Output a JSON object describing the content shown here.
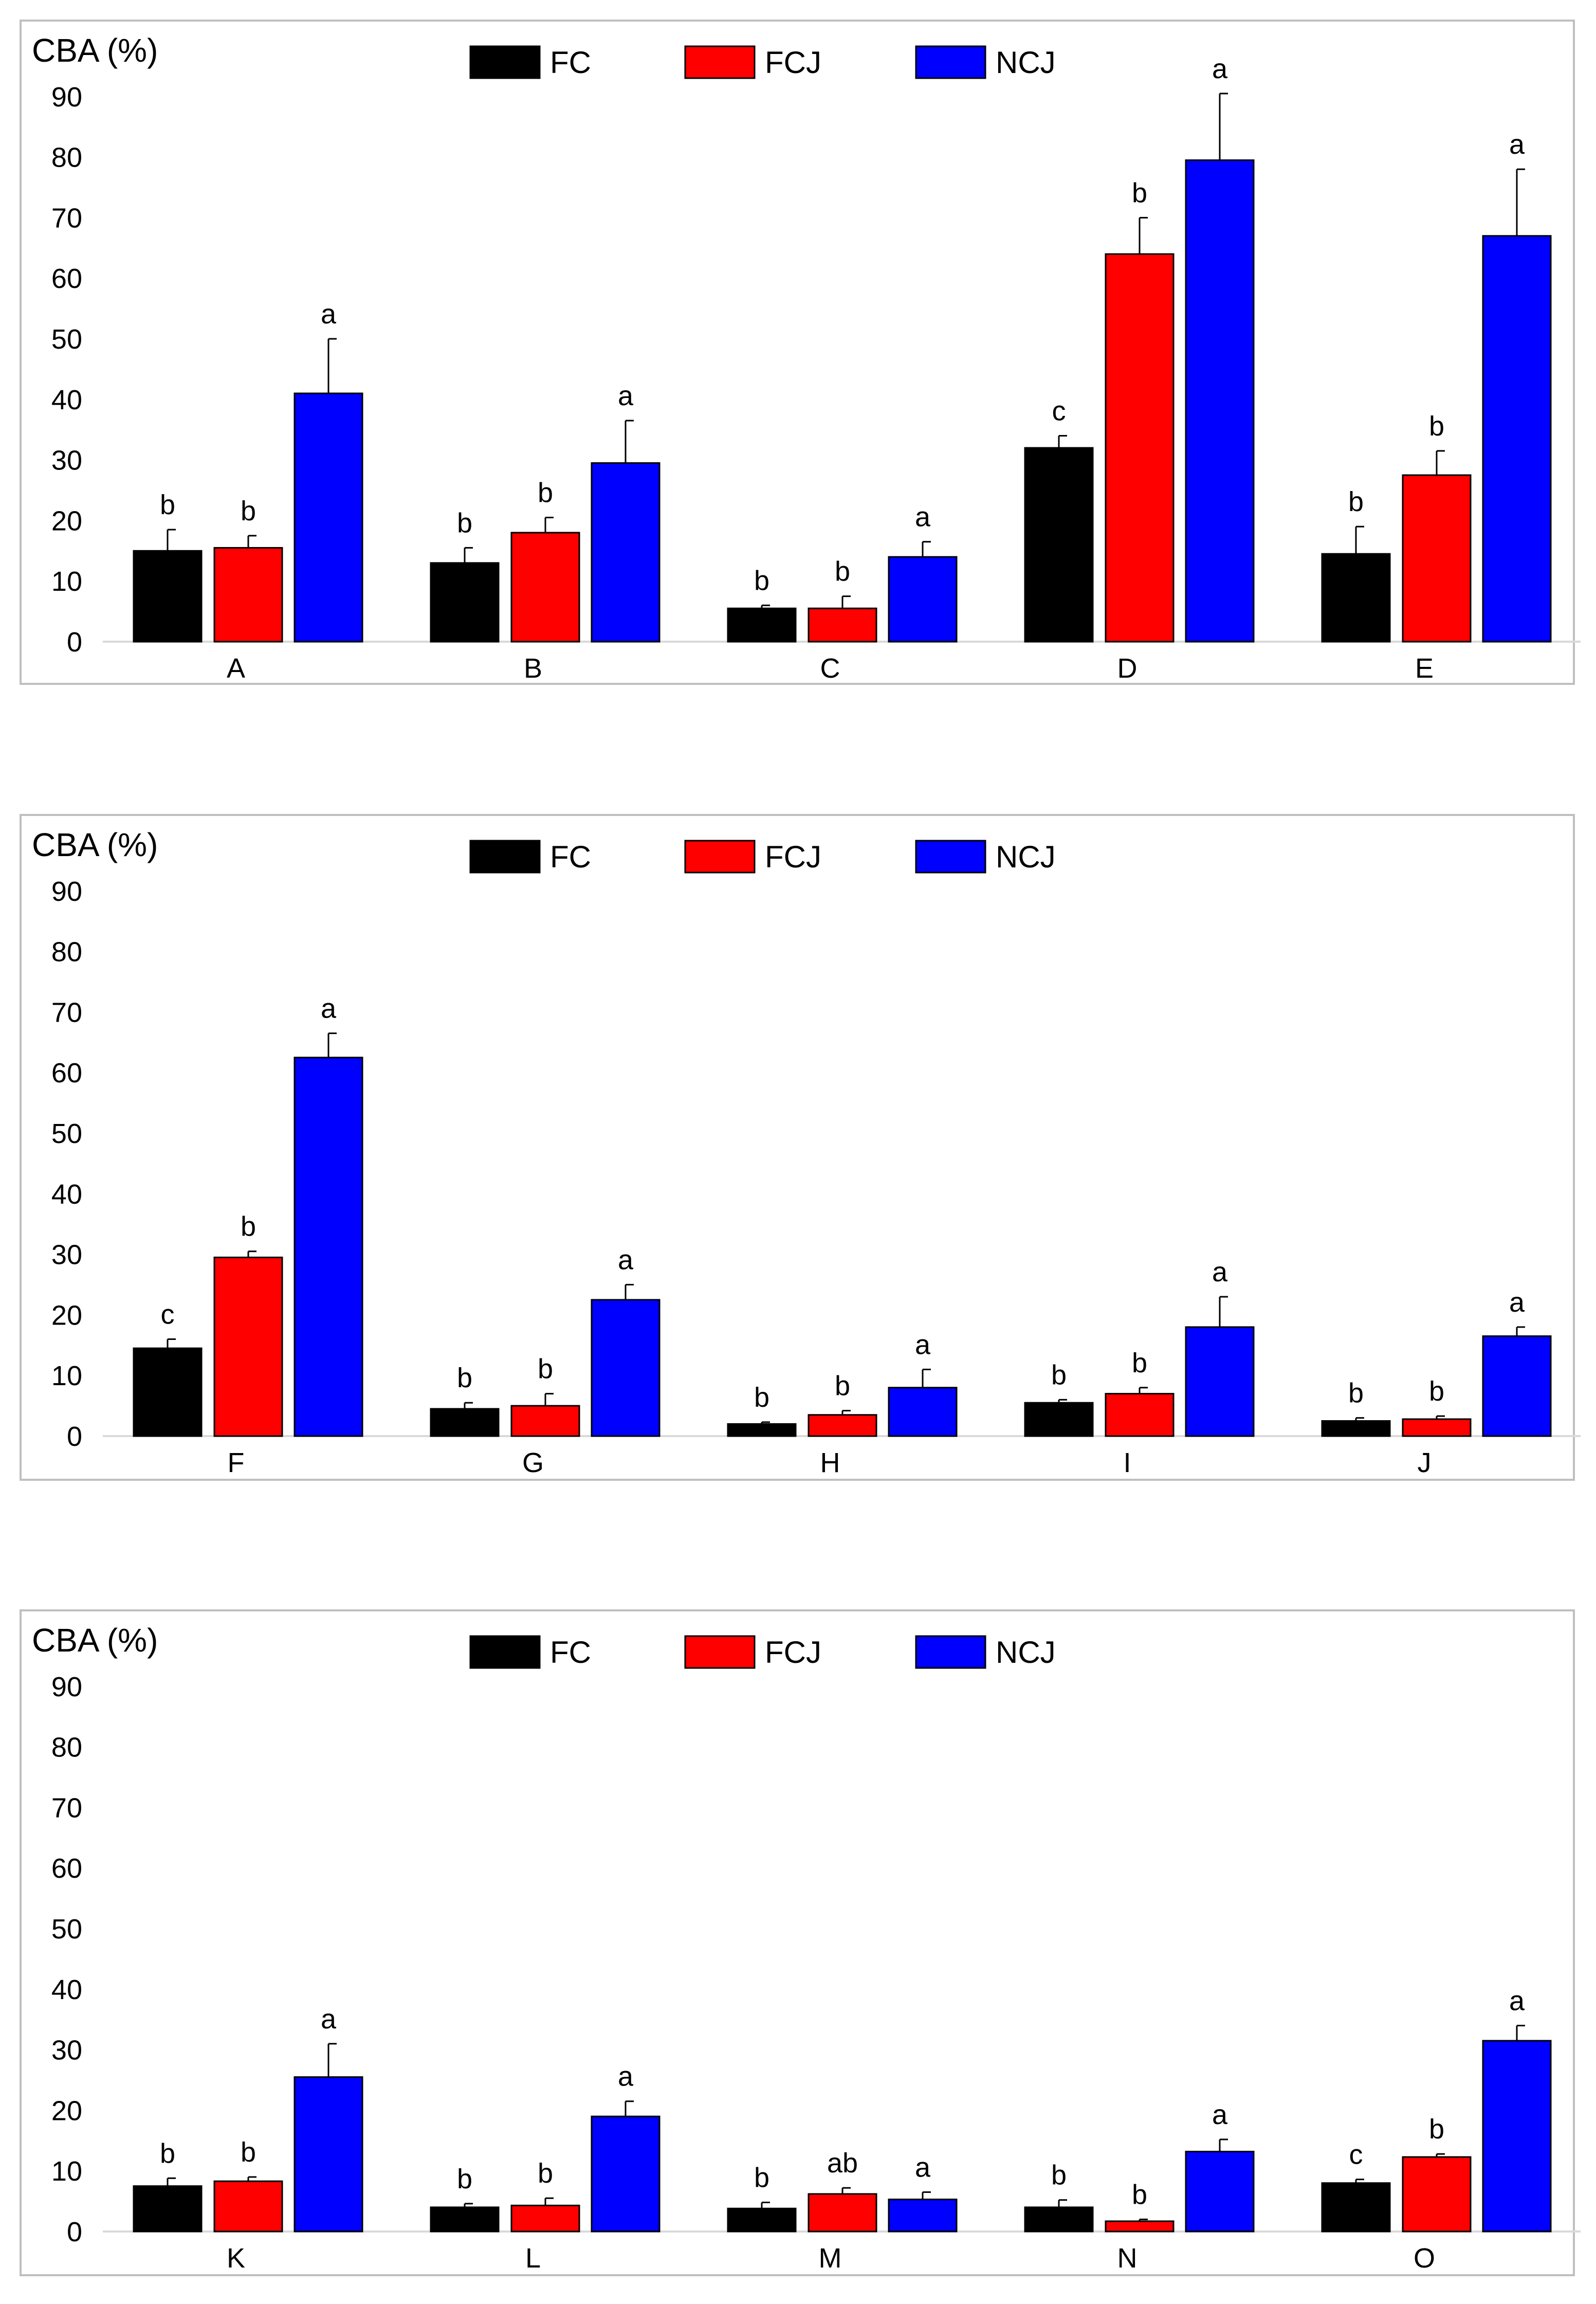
{
  "colors": {
    "FC": "#000000",
    "FCJ": "#ff0000",
    "NCJ": "#0000ff"
  },
  "chart_data": [
    {
      "type": "bar",
      "title": "",
      "ylabel": "CBA (%)",
      "xlabel": "",
      "ylim": [
        0,
        90
      ],
      "yticks": [
        "0",
        "10",
        "20",
        "30",
        "40",
        "50",
        "60",
        "70",
        "80",
        "90"
      ],
      "categories": [
        "A",
        "B",
        "C",
        "D",
        "E"
      ],
      "series": [
        {
          "name": "FC",
          "values": [
            15,
            13,
            5.5,
            32,
            14.5
          ],
          "errors": [
            3.5,
            2.5,
            0.5,
            2,
            4.5
          ],
          "letters": [
            "b",
            "b",
            "b",
            "c",
            "b"
          ]
        },
        {
          "name": "FCJ",
          "values": [
            15.5,
            18,
            5.5,
            64,
            27.5
          ],
          "errors": [
            2,
            2.5,
            2,
            6,
            4
          ],
          "letters": [
            "b",
            "b",
            "b",
            "b",
            "b"
          ]
        },
        {
          "name": "NCJ",
          "values": [
            41,
            29.5,
            14,
            79.5,
            67
          ],
          "errors": [
            9,
            7,
            2.5,
            11,
            11
          ],
          "letters": [
            "a",
            "a",
            "a",
            "a",
            "a"
          ]
        }
      ]
    },
    {
      "type": "bar",
      "title": "",
      "ylabel": "CBA (%)",
      "xlabel": "",
      "ylim": [
        0,
        90
      ],
      "yticks": [
        "0",
        "10",
        "20",
        "30",
        "40",
        "50",
        "60",
        "70",
        "80",
        "90"
      ],
      "categories": [
        "F",
        "G",
        "H",
        "I",
        "J"
      ],
      "series": [
        {
          "name": "FC",
          "values": [
            14.5,
            4.5,
            2,
            5.5,
            2.5
          ],
          "errors": [
            1.5,
            1,
            0.3,
            0.5,
            0.5
          ],
          "letters": [
            "c",
            "b",
            "b",
            "b",
            "b"
          ]
        },
        {
          "name": "FCJ",
          "values": [
            29.5,
            5,
            3.5,
            7,
            2.8
          ],
          "errors": [
            1,
            2,
            0.7,
            1,
            0.5
          ],
          "letters": [
            "b",
            "b",
            "b",
            "b",
            "b"
          ]
        },
        {
          "name": "NCJ",
          "values": [
            62.5,
            22.5,
            8,
            18,
            16.5
          ],
          "errors": [
            4,
            2.5,
            3,
            5,
            1.5
          ],
          "letters": [
            "a",
            "a",
            "a",
            "a",
            "a"
          ]
        }
      ]
    },
    {
      "type": "bar",
      "title": "",
      "ylabel": "CBA (%)",
      "xlabel": "",
      "ylim": [
        0,
        90
      ],
      "yticks": [
        "0",
        "10",
        "20",
        "30",
        "40",
        "50",
        "60",
        "70",
        "80",
        "90"
      ],
      "categories": [
        "K",
        "L",
        "M",
        "N",
        "O"
      ],
      "series": [
        {
          "name": "FC",
          "values": [
            7.5,
            4,
            3.8,
            4,
            8
          ],
          "errors": [
            1.3,
            0.6,
            1,
            1.2,
            0.6
          ],
          "letters": [
            "b",
            "b",
            "b",
            "b",
            "c"
          ]
        },
        {
          "name": "FCJ",
          "values": [
            8.3,
            4.3,
            6.2,
            1.7,
            12.3
          ],
          "errors": [
            0.7,
            1.2,
            1,
            0.3,
            0.5
          ],
          "letters": [
            "b",
            "b",
            "ab",
            "b",
            "b"
          ]
        },
        {
          "name": "NCJ",
          "values": [
            25.5,
            19,
            5.3,
            13.2,
            31.5
          ],
          "errors": [
            5.5,
            2.5,
            1.2,
            2,
            2.5
          ],
          "letters": [
            "a",
            "a",
            "a",
            "a",
            "a"
          ]
        }
      ]
    }
  ]
}
